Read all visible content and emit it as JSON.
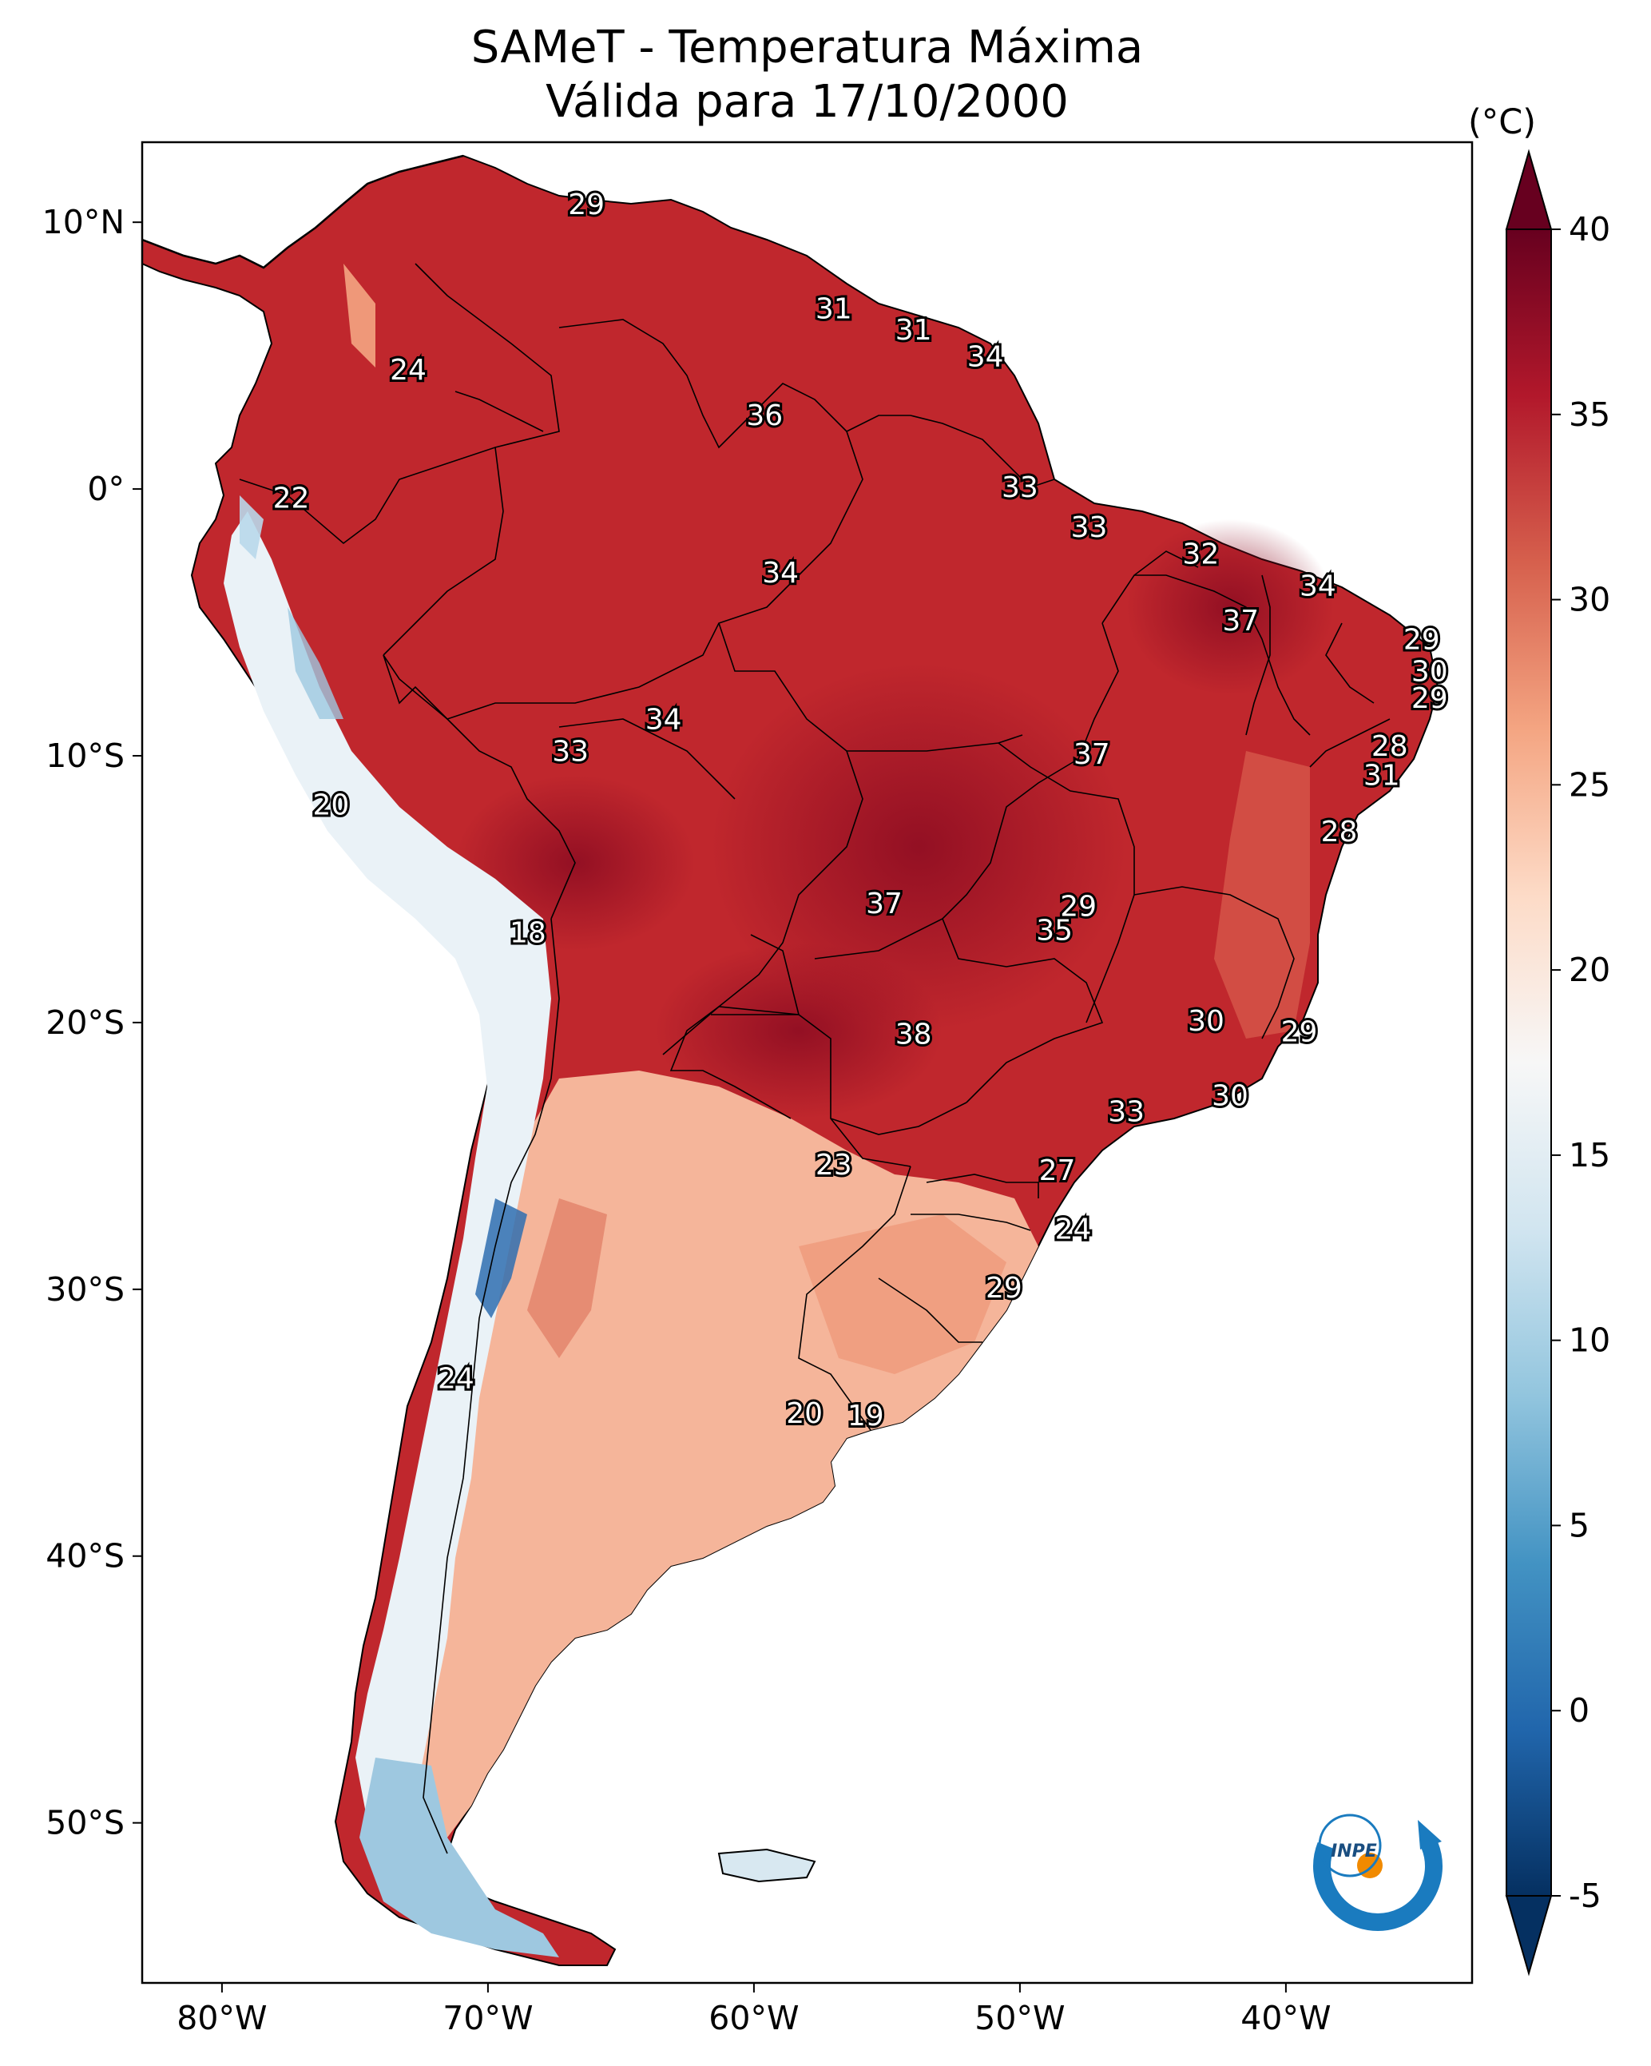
{
  "map": {
    "title_line1": "SAMeT - Temperatura Máxima",
    "title_line2": "Válida para 17/10/2000",
    "region": "South America",
    "variable": "Temperatura Máxima",
    "date": "17/10/2000",
    "lon_range": [
      -83,
      -33
    ],
    "lat_range": [
      -56,
      13
    ],
    "lon_ticks": [
      {
        "value": -80,
        "label": "80°W"
      },
      {
        "value": -70,
        "label": "70°W"
      },
      {
        "value": -60,
        "label": "60°W"
      },
      {
        "value": -50,
        "label": "50°W"
      },
      {
        "value": -40,
        "label": "40°W"
      }
    ],
    "lat_ticks": [
      {
        "value": 10,
        "label": "10°N"
      },
      {
        "value": 0,
        "label": "0°"
      },
      {
        "value": -10,
        "label": "10°S"
      },
      {
        "value": -20,
        "label": "20°S"
      },
      {
        "value": -30,
        "label": "30°S"
      },
      {
        "value": -40,
        "label": "40°S"
      },
      {
        "value": -50,
        "label": "50°S"
      }
    ],
    "point_labels": [
      {
        "text": "29",
        "lon": -66.3,
        "lat": 10.6
      },
      {
        "text": "31",
        "lon": -57.0,
        "lat": 6.7
      },
      {
        "text": "31",
        "lon": -54.0,
        "lat": 5.9
      },
      {
        "text": "34",
        "lon": -51.3,
        "lat": 4.9
      },
      {
        "text": "24",
        "lon": -73.0,
        "lat": 4.4
      },
      {
        "text": "36",
        "lon": -59.6,
        "lat": 2.7
      },
      {
        "text": "22",
        "lon": -77.4,
        "lat": -0.4
      },
      {
        "text": "33",
        "lon": -50.0,
        "lat": 0.0
      },
      {
        "text": "33",
        "lon": -47.4,
        "lat": -1.5
      },
      {
        "text": "34",
        "lon": -59.0,
        "lat": -3.2
      },
      {
        "text": "32",
        "lon": -43.2,
        "lat": -2.5
      },
      {
        "text": "34",
        "lon": -38.8,
        "lat": -3.7
      },
      {
        "text": "37",
        "lon": -41.7,
        "lat": -5.0
      },
      {
        "text": "29",
        "lon": -34.9,
        "lat": -5.7
      },
      {
        "text": "30",
        "lon": -34.6,
        "lat": -6.9
      },
      {
        "text": "29",
        "lon": -34.6,
        "lat": -7.9
      },
      {
        "text": "34",
        "lon": -63.4,
        "lat": -8.7
      },
      {
        "text": "33",
        "lon": -66.9,
        "lat": -9.9
      },
      {
        "text": "37",
        "lon": -47.3,
        "lat": -10.0
      },
      {
        "text": "28",
        "lon": -36.1,
        "lat": -9.7
      },
      {
        "text": "31",
        "lon": -36.4,
        "lat": -10.8
      },
      {
        "text": "20",
        "lon": -75.9,
        "lat": -11.9
      },
      {
        "text": "28",
        "lon": -38.0,
        "lat": -12.9
      },
      {
        "text": "37",
        "lon": -55.1,
        "lat": -15.6
      },
      {
        "text": "29",
        "lon": -47.8,
        "lat": -15.7
      },
      {
        "text": "35",
        "lon": -48.7,
        "lat": -16.6
      },
      {
        "text": "18",
        "lon": -68.5,
        "lat": -16.7
      },
      {
        "text": "30",
        "lon": -43.0,
        "lat": -20.0
      },
      {
        "text": "38",
        "lon": -54.0,
        "lat": -20.5
      },
      {
        "text": "29",
        "lon": -39.5,
        "lat": -20.4
      },
      {
        "text": "30",
        "lon": -42.1,
        "lat": -22.8
      },
      {
        "text": "33",
        "lon": -46.0,
        "lat": -23.4
      },
      {
        "text": "23",
        "lon": -57.0,
        "lat": -25.4
      },
      {
        "text": "27",
        "lon": -48.6,
        "lat": -25.6
      },
      {
        "text": "24",
        "lon": -48.0,
        "lat": -27.8
      },
      {
        "text": "29",
        "lon": -50.6,
        "lat": -30.0
      },
      {
        "text": "24",
        "lon": -71.2,
        "lat": -33.4
      },
      {
        "text": "20",
        "lon": -58.1,
        "lat": -34.7
      },
      {
        "text": "19",
        "lon": -55.8,
        "lat": -34.8
      }
    ],
    "logo_text": "INPE"
  },
  "colorbar": {
    "unit_label": "(°C)",
    "min": -5,
    "max": 40,
    "extend": "both",
    "ticks": [
      {
        "value": 40,
        "label": "40"
      },
      {
        "value": 35,
        "label": "35"
      },
      {
        "value": 30,
        "label": "30"
      },
      {
        "value": 25,
        "label": "25"
      },
      {
        "value": 20,
        "label": "20"
      },
      {
        "value": 15,
        "label": "15"
      },
      {
        "value": 10,
        "label": "10"
      },
      {
        "value": 5,
        "label": "5"
      },
      {
        "value": 0,
        "label": "0"
      },
      {
        "value": -5,
        "label": "-5"
      }
    ],
    "colors": [
      "#053061",
      "#2166ac",
      "#4393c3",
      "#92c5de",
      "#d1e5f0",
      "#f7f7f7",
      "#fddbc7",
      "#f4a582",
      "#d6604d",
      "#b2182b",
      "#67001f"
    ]
  }
}
